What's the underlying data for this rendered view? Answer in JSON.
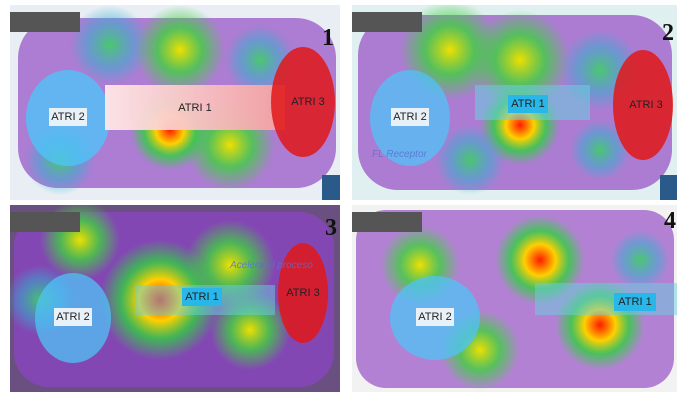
{
  "panels": [
    {
      "number": "1",
      "areas": [
        "ATRI 1",
        "ATRI 2",
        "ATRI 3"
      ]
    },
    {
      "number": "2",
      "areas": [
        "ATRI 1",
        "ATRI 2",
        "ATRI 3"
      ],
      "caption": "FL Receptor"
    },
    {
      "number": "3",
      "areas": [
        "ATRI 1",
        "ATRI 2",
        "ATRI 3"
      ],
      "caption": "Acelera el proceso"
    },
    {
      "number": "4",
      "areas": [
        "ATRI 1",
        "ATRI 2"
      ]
    }
  ]
}
